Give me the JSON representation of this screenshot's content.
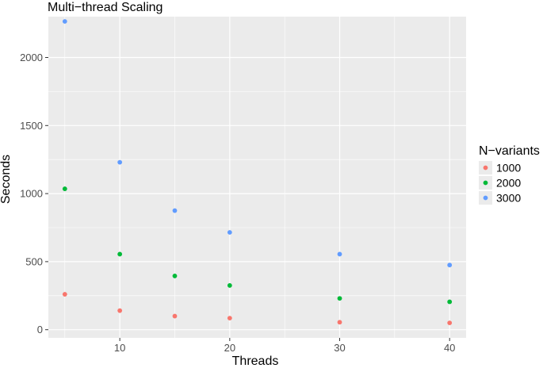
{
  "chart_data": {
    "type": "scatter",
    "title": "Multi−thread Scaling",
    "xlabel": "Threads",
    "ylabel": "Seconds",
    "xlim": [
      3.5,
      41.5
    ],
    "ylim": [
      -60,
      2300
    ],
    "x_ticks": [
      10,
      20,
      30,
      40
    ],
    "x_tick_labels": [
      "10",
      "20",
      "30",
      "40"
    ],
    "y_ticks": [
      0,
      500,
      1000,
      1500,
      2000
    ],
    "y_tick_labels": [
      "0",
      "500",
      "1000",
      "1500",
      "2000"
    ],
    "grid": true,
    "legend_title": "N−variants",
    "legend_position": "right",
    "series": [
      {
        "name": "1000",
        "color": "#F8766D",
        "x": [
          5,
          10,
          15,
          20,
          30,
          40
        ],
        "y": [
          260,
          140,
          100,
          85,
          55,
          50
        ]
      },
      {
        "name": "2000",
        "color": "#00BA38",
        "x": [
          5,
          10,
          15,
          20,
          30,
          40
        ],
        "y": [
          1035,
          555,
          395,
          325,
          230,
          205
        ]
      },
      {
        "name": "3000",
        "color": "#619CFF",
        "x": [
          5,
          10,
          15,
          20,
          30,
          40
        ],
        "y": [
          2265,
          1230,
          875,
          715,
          555,
          475
        ]
      }
    ],
    "panel_background": "#EBEBEB",
    "grid_color": "#FFFFFF"
  }
}
